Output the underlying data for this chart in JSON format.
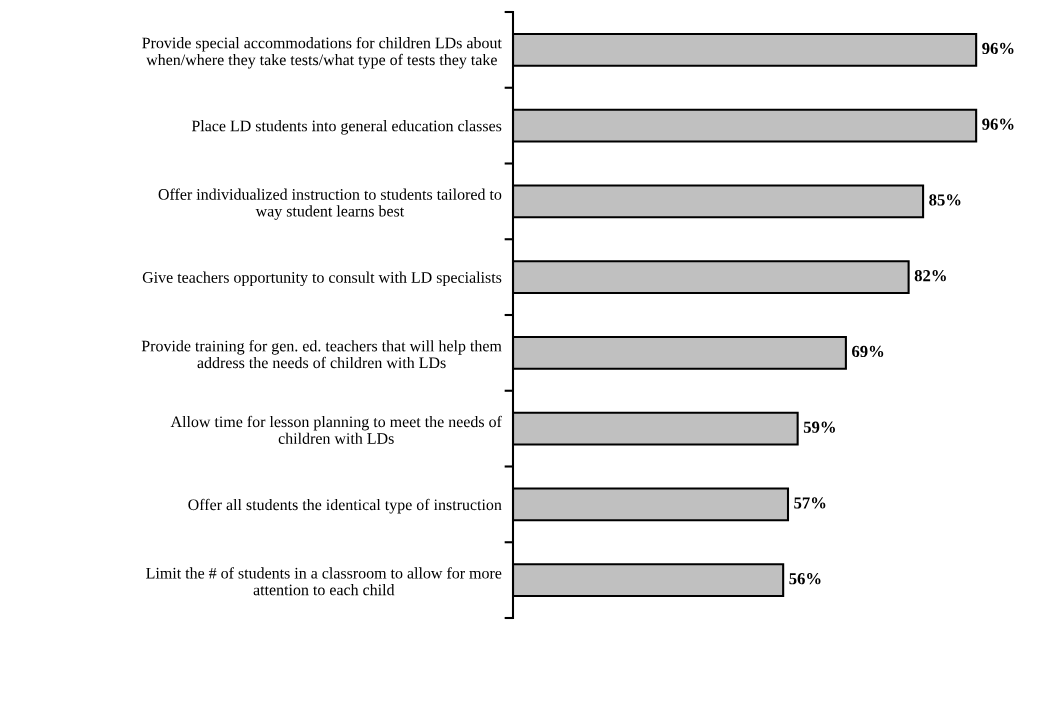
{
  "chart_data": {
    "type": "bar",
    "orientation": "horizontal",
    "categories": [
      "Provide special accommodations for children LDs about\nwhen/where they take tests/what type of tests they take",
      "Place LD students into general education classes",
      "Offer individualized instruction to students tailored to\nway student learns best",
      "Give teachers opportunity to consult with LD specialists",
      "Provide training for gen. ed. teachers that will help them\naddress the needs of children with LDs",
      "Allow time for lesson planning to meet the needs of\nchildren with LDs",
      "Offer all students the identical type of instruction",
      "Limit the # of students in a classroom to allow for more\nattention to each child"
    ],
    "values": [
      96,
      96,
      85,
      82,
      69,
      59,
      57,
      56
    ],
    "value_labels": [
      "96%",
      "96%",
      "85%",
      "82%",
      "69%",
      "59%",
      "57%",
      "56%"
    ],
    "color": "#c0c0c0",
    "tick_labels": "y",
    "grid": false,
    "legend": false
  }
}
